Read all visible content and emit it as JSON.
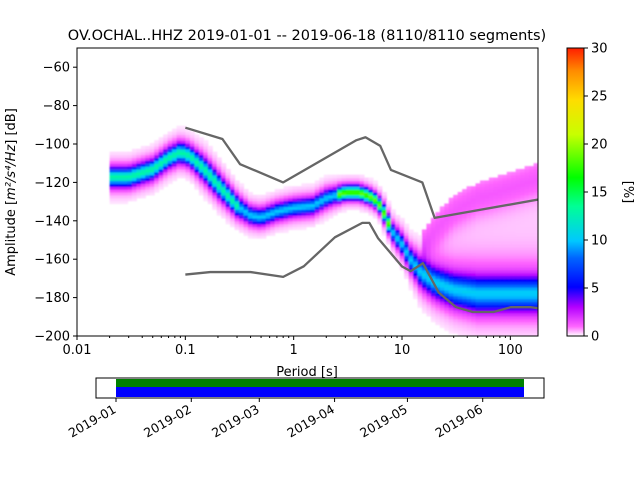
{
  "chart_data": {
    "type": "heatmap",
    "title": "OV.OCHAL..HHZ   2019-01-01 -- 2019-06-18  (8110/8110 segments)",
    "xlabel": "Period [s]",
    "ylabel_main": "Amplitude [",
    "ylabel_math": "m²/s⁴/Hz",
    "ylabel_unit": "] [dB]",
    "x_scale": "log",
    "xlim": [
      0.01,
      180
    ],
    "ylim": [
      -200,
      -50
    ],
    "x_ticks": [
      {
        "value": 0.01,
        "label": "0.01"
      },
      {
        "value": 0.1,
        "label": "0.1"
      },
      {
        "value": 1,
        "label": "1"
      },
      {
        "value": 10,
        "label": "10"
      },
      {
        "value": 100,
        "label": "100"
      }
    ],
    "y_ticks": [
      {
        "value": -60,
        "label": "−60"
      },
      {
        "value": -80,
        "label": "−80"
      },
      {
        "value": -100,
        "label": "−100"
      },
      {
        "value": -120,
        "label": "−120"
      },
      {
        "value": -140,
        "label": "−140"
      },
      {
        "value": -160,
        "label": "−160"
      },
      {
        "value": -180,
        "label": "−180"
      },
      {
        "value": -200,
        "label": "−200"
      }
    ],
    "colorbar": {
      "label": "[%]",
      "range": [
        0,
        30
      ],
      "ticks": [
        {
          "value": 0,
          "label": "0"
        },
        {
          "value": 5,
          "label": "5"
        },
        {
          "value": 10,
          "label": "10"
        },
        {
          "value": 15,
          "label": "15"
        },
        {
          "value": 20,
          "label": "20"
        },
        {
          "value": 25,
          "label": "25"
        },
        {
          "value": 30,
          "label": "30"
        }
      ]
    },
    "psd_mode": {
      "period": [
        0.02,
        0.03,
        0.05,
        0.07,
        0.09,
        0.11,
        0.15,
        0.2,
        0.3,
        0.4,
        0.5,
        0.7,
        1,
        1.5,
        2,
        3,
        4,
        5,
        6,
        7,
        8,
        10,
        12,
        15,
        20,
        30,
        50,
        100,
        180
      ],
      "amplitude": [
        -117,
        -117,
        -113,
        -107,
        -104,
        -106,
        -113,
        -121,
        -132,
        -137,
        -138,
        -135,
        -133,
        -132,
        -128,
        -125,
        -125,
        -127,
        -130,
        -137,
        -145,
        -152,
        -160,
        -167,
        -172,
        -176,
        -178,
        -178,
        -178
      ],
      "spread_db": [
        7,
        7,
        7,
        7,
        7,
        7,
        8,
        8,
        7,
        6,
        6,
        6,
        6,
        6,
        6,
        5,
        5,
        5,
        5,
        6,
        6,
        7,
        8,
        10,
        11,
        12,
        13,
        13,
        13
      ]
    },
    "upper_tail": {
      "period": [
        15,
        20,
        30,
        50,
        100,
        180
      ],
      "amplitude": [
        -155,
        -145,
        -135,
        -128,
        -123,
        -118
      ]
    },
    "noise_models": [
      {
        "name": "NHNM",
        "period": [
          0.1,
          0.22,
          0.32,
          0.8,
          3.8,
          4.6,
          6.3,
          7.9,
          15.4,
          20,
          354.8
        ],
        "amplitude": [
          -91.5,
          -97.4,
          -110.5,
          -120,
          -98,
          -96.5,
          -101,
          -113.5,
          -120,
          -138.5,
          -126
        ]
      },
      {
        "name": "NLNM",
        "period": [
          0.1,
          0.17,
          0.4,
          0.8,
          1.24,
          2.4,
          4.3,
          5,
          6,
          10,
          12,
          15.6,
          21.9,
          31.6,
          45,
          70,
          101,
          154,
          328
        ],
        "amplitude": [
          -168,
          -166.7,
          -166.7,
          -169.2,
          -163.7,
          -148.6,
          -141.1,
          -141.1,
          -149,
          -163.8,
          -166.2,
          -162.1,
          -177.5,
          -185,
          -187.5,
          -187.5,
          -185,
          -185,
          -187.5
        ]
      }
    ],
    "time_axis": {
      "range": [
        "2019-01-01",
        "2019-06-18"
      ],
      "coverage": [
        [
          "2019-01-01",
          "2019-06-18"
        ]
      ],
      "ticks": [
        {
          "date": "2019-01-01",
          "label": "2019-01"
        },
        {
          "date": "2019-02-01",
          "label": "2019-02"
        },
        {
          "date": "2019-03-01",
          "label": "2019-03"
        },
        {
          "date": "2019-04-01",
          "label": "2019-04"
        },
        {
          "date": "2019-05-01",
          "label": "2019-05"
        },
        {
          "date": "2019-06-01",
          "label": "2019-06"
        }
      ],
      "colors": {
        "top": "#008000",
        "bottom": "#0000ff"
      }
    },
    "colors": {
      "noise_model_line": "#666666"
    }
  }
}
